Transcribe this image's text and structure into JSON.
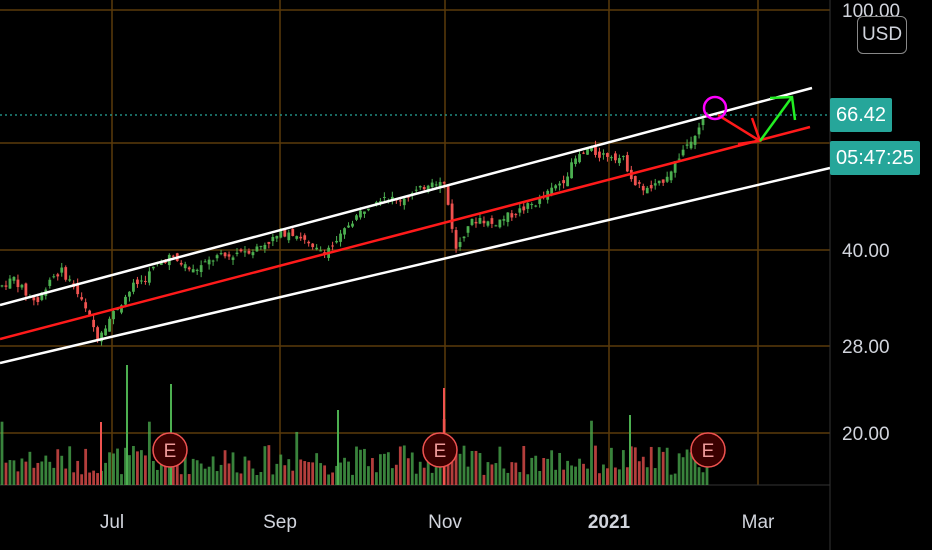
{
  "currency": "USD",
  "price_tag": "66.42",
  "countdown_tag": "05:47:25",
  "earnings_marker": "E",
  "colors": {
    "up": "#4caf50",
    "down": "#ef5350",
    "channel": "#ffffff",
    "midline": "#ff1a1a",
    "grid": "#5a3a0a",
    "price_line": "#26a69a",
    "arrow_down": "#ff1a1a",
    "arrow_up": "#22ee22",
    "circle": "#ff00ff"
  },
  "chart_data": {
    "type": "candlestick",
    "y_scale": "log",
    "y_ticks": [
      "100.00",
      "40.00",
      "28.00",
      "20.00"
    ],
    "x_ticks": [
      {
        "label": "Jul",
        "bold": false
      },
      {
        "label": "Sep",
        "bold": false
      },
      {
        "label": "Nov",
        "bold": false
      },
      {
        "label": "2021",
        "bold": true
      },
      {
        "label": "Mar",
        "bold": false
      }
    ],
    "last_price": 66.42,
    "earnings_events": 3,
    "approx_closes": [
      35,
      36,
      34,
      33,
      36,
      37,
      35,
      32,
      29,
      31,
      33,
      35,
      36,
      38,
      39,
      38,
      37,
      38,
      39,
      39,
      40,
      40,
      41,
      42,
      43,
      42,
      40,
      40,
      41,
      44,
      46,
      48,
      49,
      48,
      49,
      50,
      52,
      51,
      40,
      44,
      45,
      44,
      45,
      46,
      47,
      48,
      50,
      52,
      56,
      58,
      57,
      57,
      56,
      51,
      50,
      51,
      54,
      58,
      62,
      66
    ]
  }
}
